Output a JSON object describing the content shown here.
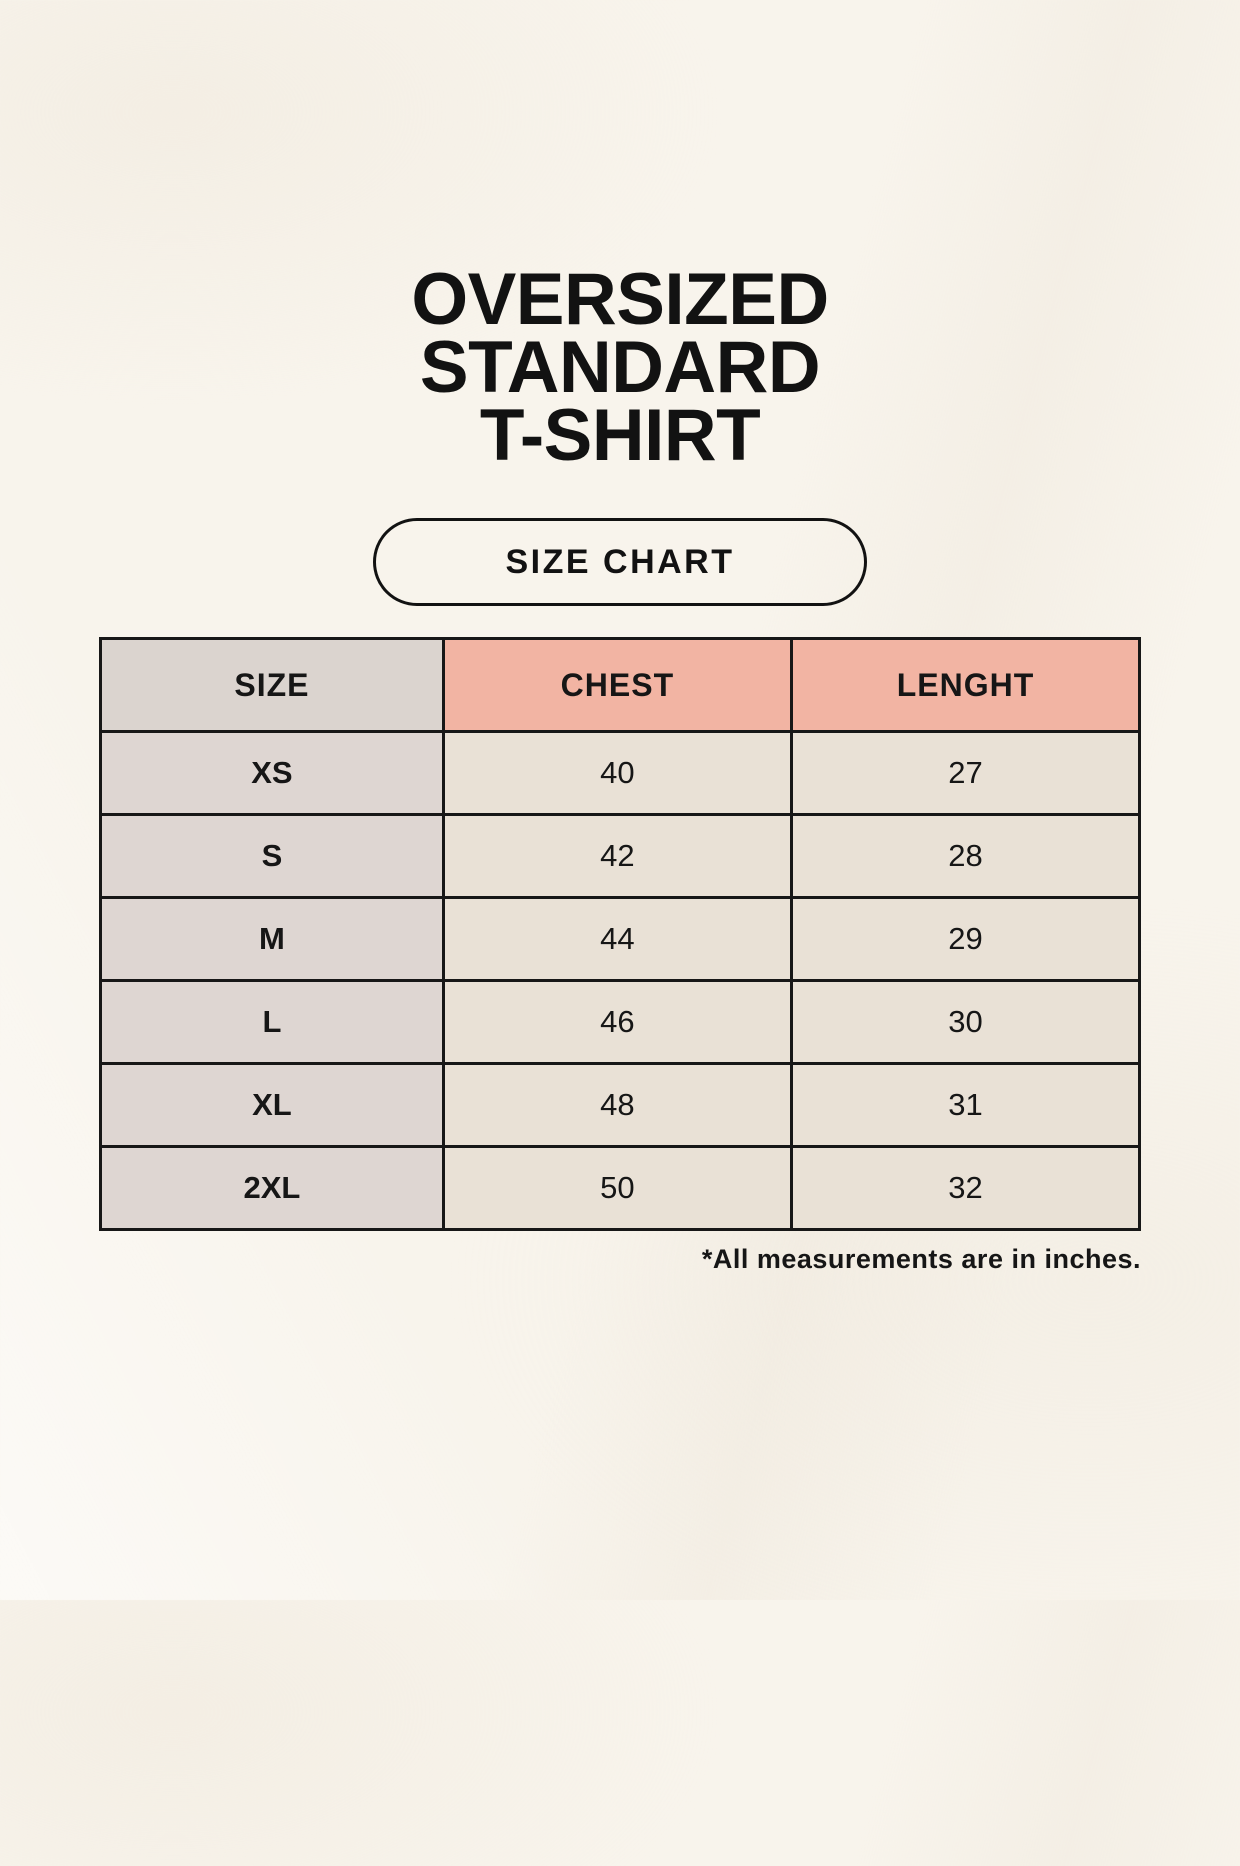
{
  "header": {
    "title_lines": [
      "OVERSIZED",
      "STANDARD",
      "T-SHIRT"
    ]
  },
  "size_chart_button": {
    "label": "SIZE CHART"
  },
  "table": {
    "columns": [
      "SIZE",
      "CHEST",
      "LENGHT"
    ],
    "rows": [
      {
        "size": "XS",
        "chest": "40",
        "length": "27"
      },
      {
        "size": "S",
        "chest": "42",
        "length": "28"
      },
      {
        "size": "M",
        "chest": "44",
        "length": "29"
      },
      {
        "size": "L",
        "chest": "46",
        "length": "30"
      },
      {
        "size": "XL",
        "chest": "48",
        "length": "31"
      },
      {
        "size": "2XL",
        "chest": "50",
        "length": "32"
      }
    ],
    "footnote": "*All measurements are in inches."
  },
  "colors": {
    "background": "#f8f4ec",
    "header_size_bg": "#dbd4cf",
    "header_measure_bg": "#f2b4a3",
    "size_column_bg": "#ded6d2",
    "data_cell_bg": "#e9e1d6",
    "border": "#171717",
    "text": "#161616"
  },
  "chart_data": {
    "type": "table",
    "title": "OVERSIZED STANDARD T-SHIRT — SIZE CHART",
    "columns": [
      "SIZE",
      "CHEST",
      "LENGHT"
    ],
    "rows": [
      [
        "XS",
        40,
        27
      ],
      [
        "S",
        42,
        28
      ],
      [
        "M",
        44,
        29
      ],
      [
        "L",
        46,
        30
      ],
      [
        "XL",
        48,
        31
      ],
      [
        "2XL",
        50,
        32
      ]
    ],
    "footnote": "*All measurements are in inches."
  }
}
